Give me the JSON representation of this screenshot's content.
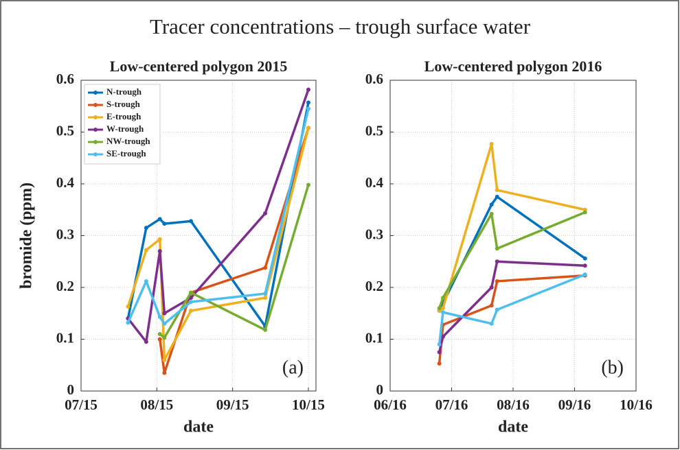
{
  "title": "Tracer concentrations – trough surface water",
  "chart_data": [
    {
      "type": "line",
      "title": "Low-centered polygon 2015",
      "xlabel": "date",
      "ylabel": "bromide (ppm)",
      "annotation": "(a)",
      "xlim": [
        7,
        10.1
      ],
      "xticks": [
        {
          "value": 7,
          "label": "07/15"
        },
        {
          "value": 8,
          "label": "08/15"
        },
        {
          "value": 9,
          "label": "09/15"
        },
        {
          "value": 10,
          "label": "10/15"
        }
      ],
      "ylim": [
        0,
        0.6
      ],
      "yticks": [
        0,
        0.1,
        0.2,
        0.3,
        0.4,
        0.5,
        0.6
      ],
      "grid": true,
      "legend": "upper left",
      "series": [
        {
          "name": "N-trough",
          "color": "#0072bd",
          "x": [
            7.62,
            7.86,
            8.04,
            8.1,
            8.45,
            9.43,
            10.0
          ],
          "values": [
            0.14,
            0.315,
            0.332,
            0.323,
            0.328,
            0.125,
            0.557
          ]
        },
        {
          "name": "S-trough",
          "color": "#d95319",
          "x": [
            8.04,
            8.1,
            8.45,
            9.43,
            10.0
          ],
          "values": [
            0.1,
            0.035,
            0.19,
            0.238,
            0.508
          ]
        },
        {
          "name": "E-trough",
          "color": "#edb120",
          "x": [
            7.62,
            7.86,
            8.04,
            8.1,
            8.45,
            9.43,
            10.0
          ],
          "values": [
            0.163,
            0.272,
            0.293,
            0.06,
            0.155,
            0.18,
            0.508
          ]
        },
        {
          "name": "W-trough",
          "color": "#7e2f8e",
          "x": [
            7.62,
            7.86,
            8.04,
            8.1,
            8.45,
            9.43,
            10.0
          ],
          "values": [
            0.14,
            0.095,
            0.27,
            0.15,
            0.18,
            0.343,
            0.582
          ]
        },
        {
          "name": "NW-trough",
          "color": "#77ac30",
          "x": [
            8.04,
            8.1,
            8.45,
            9.43,
            10.0
          ],
          "values": [
            0.11,
            0.103,
            0.19,
            0.118,
            0.398
          ]
        },
        {
          "name": "SE-trough",
          "color": "#4dbeee",
          "x": [
            7.62,
            7.86,
            8.04,
            8.1,
            8.45,
            9.43,
            10.0
          ],
          "values": [
            0.132,
            0.212,
            0.143,
            0.13,
            0.172,
            0.188,
            0.545
          ]
        }
      ]
    },
    {
      "type": "line",
      "title": "Low-centered polygon 2016",
      "xlabel": "date",
      "annotation": "(b)",
      "xlim": [
        6,
        10
      ],
      "xticks": [
        {
          "value": 6,
          "label": "06/16"
        },
        {
          "value": 7,
          "label": "07/16"
        },
        {
          "value": 8,
          "label": "08/16"
        },
        {
          "value": 9,
          "label": "09/16"
        },
        {
          "value": 10,
          "label": "10/16"
        }
      ],
      "ylim": [
        0,
        0.6
      ],
      "yticks": [
        0,
        0.1,
        0.2,
        0.3,
        0.4,
        0.5,
        0.6
      ],
      "grid": true,
      "series": [
        {
          "color": "#0072bd",
          "x": [
            6.8,
            7.65,
            7.74,
            9.17
          ],
          "values": [
            0.155,
            0.36,
            0.375,
            0.256
          ]
        },
        {
          "color": "#d95319",
          "x": [
            6.8,
            6.86,
            7.65,
            7.74,
            9.17
          ],
          "values": [
            0.053,
            0.128,
            0.165,
            0.212,
            0.223
          ]
        },
        {
          "color": "#edb120",
          "x": [
            6.8,
            6.86,
            7.65,
            7.74,
            9.17
          ],
          "values": [
            0.155,
            0.16,
            0.477,
            0.388,
            0.35
          ]
        },
        {
          "color": "#7e2f8e",
          "x": [
            6.8,
            6.86,
            7.65,
            7.74,
            9.17
          ],
          "values": [
            0.075,
            0.105,
            0.2,
            0.25,
            0.242
          ]
        },
        {
          "color": "#77ac30",
          "x": [
            6.8,
            6.86,
            7.65,
            7.74,
            9.17
          ],
          "values": [
            0.16,
            0.18,
            0.342,
            0.275,
            0.345
          ]
        },
        {
          "color": "#4dbeee",
          "x": [
            6.8,
            6.86,
            7.65,
            7.74,
            9.17
          ],
          "values": [
            0.09,
            0.152,
            0.13,
            0.157,
            0.225
          ]
        }
      ]
    }
  ]
}
